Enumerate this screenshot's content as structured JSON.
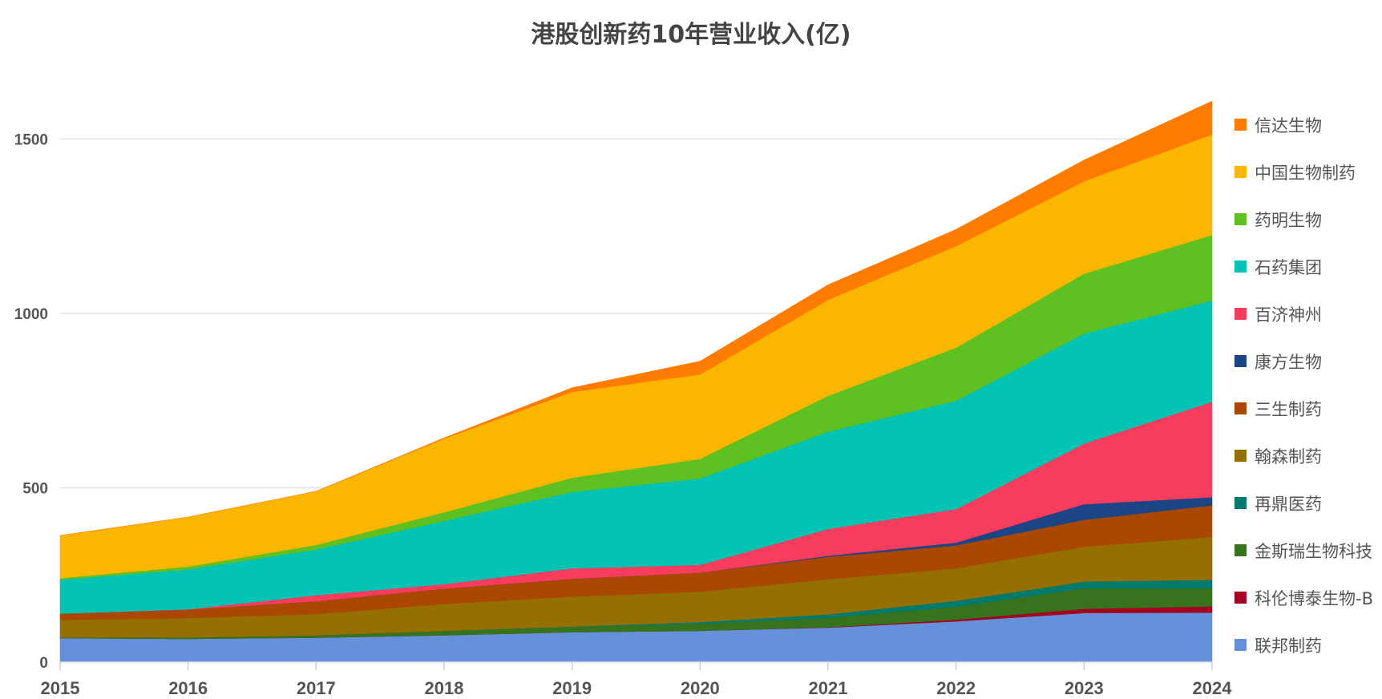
{
  "chart_data": {
    "type": "area",
    "stacked": true,
    "title": "港股创新药10年营业收入(亿)",
    "xlabel": "",
    "ylabel": "",
    "categories": [
      "2015",
      "2016",
      "2017",
      "2018",
      "2019",
      "2020",
      "2021",
      "2022",
      "2023",
      "2024"
    ],
    "ylim": [
      0,
      1650
    ],
    "yticks": [
      0,
      500,
      1000,
      1500
    ],
    "grid": true,
    "legend_position": "right",
    "series": [
      {
        "name": "联邦制药",
        "color": "#6591db",
        "values": [
          69,
          67,
          70,
          77,
          86,
          90,
          99,
          117,
          141,
          142
        ]
      },
      {
        "name": "科伦博泰生物-B",
        "color": "#a50021",
        "values": [
          0,
          0,
          0,
          0,
          0,
          0,
          1,
          5,
          12,
          18
        ]
      },
      {
        "name": "金斯瑞生物科技",
        "color": "#37721c",
        "values": [
          2,
          4,
          7,
          13,
          15,
          20,
          27,
          37,
          59,
          52
        ]
      },
      {
        "name": "再鼎医药",
        "color": "#007a6d",
        "values": [
          0,
          0,
          0,
          0,
          1,
          5,
          10,
          17,
          19,
          24
        ]
      },
      {
        "name": "翰森制药",
        "color": "#956f00",
        "values": [
          50,
          56,
          61,
          77,
          86,
          87,
          101,
          93,
          100,
          123
        ]
      },
      {
        "name": "三生制药",
        "color": "#aa4700",
        "values": [
          18,
          24,
          37,
          44,
          51,
          55,
          64,
          66,
          77,
          91
        ]
      },
      {
        "name": "康方生物",
        "color": "#1b4585",
        "values": [
          0,
          0,
          0,
          0,
          0,
          0,
          3,
          8,
          45,
          23
        ]
      },
      {
        "name": "百济神州",
        "color": "#f83c5e",
        "values": [
          0,
          1,
          17,
          13,
          30,
          22,
          77,
          96,
          174,
          274
        ]
      },
      {
        "name": "石药集团",
        "color": "#00c3b3",
        "values": [
          97,
          114,
          131,
          181,
          219,
          248,
          279,
          311,
          315,
          290
        ]
      },
      {
        "name": "药明生物",
        "color": "#5fc022",
        "values": [
          5,
          8,
          13,
          25,
          41,
          56,
          103,
          152,
          172,
          188
        ]
      },
      {
        "name": "中国生物制药",
        "color": "#fbb600",
        "values": [
          122,
          142,
          154,
          211,
          246,
          242,
          275,
          291,
          265,
          288
        ]
      },
      {
        "name": "信达生物",
        "color": "#ff7c00",
        "values": [
          0,
          0,
          0,
          2,
          12,
          38,
          43,
          48,
          61,
          96
        ]
      }
    ]
  }
}
